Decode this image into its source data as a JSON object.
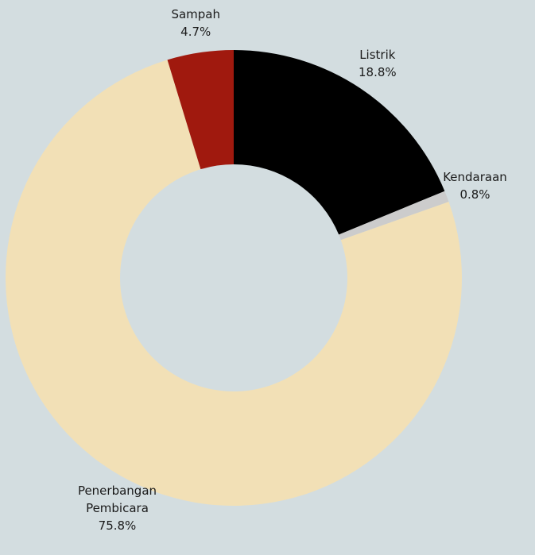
{
  "chart_data": {
    "type": "donut",
    "categories": [
      "Listrik",
      "Kendaraan",
      "Penerbangan Pembicara",
      "Sampah"
    ],
    "values": [
      18.8,
      0.8,
      75.8,
      4.7
    ],
    "value_labels": [
      "18.8%",
      "0.8%",
      "75.8%",
      "4.7%"
    ],
    "colors": [
      "#000000",
      "#cccccc",
      "#f2e0b6",
      "#a0190e"
    ]
  }
}
